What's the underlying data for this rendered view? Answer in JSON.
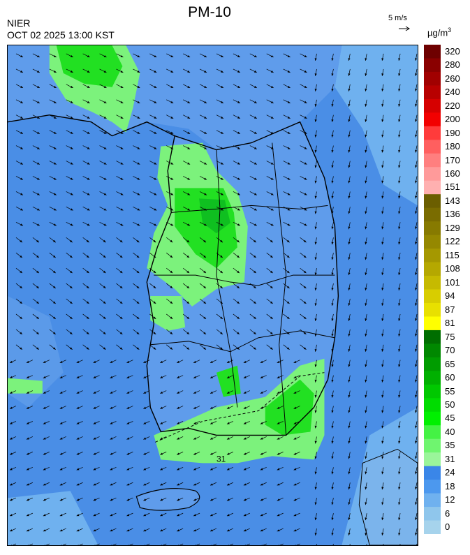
{
  "header": {
    "title": "PM-10",
    "agency": "NIER",
    "datetime": "OCT 02 2025 13:00 KST",
    "wind_scale_label": "5 m/s",
    "unit_base": "µg/m",
    "unit_sup": "3"
  },
  "legend": {
    "levels": [
      {
        "label": "320",
        "color": "#6e0000"
      },
      {
        "label": "280",
        "color": "#8a0000"
      },
      {
        "label": "260",
        "color": "#a10000"
      },
      {
        "label": "240",
        "color": "#b80000"
      },
      {
        "label": "220",
        "color": "#d60000"
      },
      {
        "label": "200",
        "color": "#f20000"
      },
      {
        "label": "190",
        "color": "#ff3b3b"
      },
      {
        "label": "180",
        "color": "#ff5f5f"
      },
      {
        "label": "170",
        "color": "#ff7f7f"
      },
      {
        "label": "160",
        "color": "#ff9a9a"
      },
      {
        "label": "151",
        "color": "#ffb0b0"
      },
      {
        "label": "143",
        "color": "#6b5e00"
      },
      {
        "label": "136",
        "color": "#7a6c00"
      },
      {
        "label": "129",
        "color": "#877a00"
      },
      {
        "label": "122",
        "color": "#958800"
      },
      {
        "label": "115",
        "color": "#a59800"
      },
      {
        "label": "108",
        "color": "#b5a800"
      },
      {
        "label": "101",
        "color": "#c6ba00"
      },
      {
        "label": "94",
        "color": "#d8cd00"
      },
      {
        "label": "87",
        "color": "#e8e000"
      },
      {
        "label": "81",
        "color": "#ffff00"
      },
      {
        "label": "75",
        "color": "#006e00"
      },
      {
        "label": "70",
        "color": "#008800"
      },
      {
        "label": "65",
        "color": "#009c00"
      },
      {
        "label": "60",
        "color": "#00b000"
      },
      {
        "label": "55",
        "color": "#00c800"
      },
      {
        "label": "50",
        "color": "#00dc00"
      },
      {
        "label": "45",
        "color": "#00f000"
      },
      {
        "label": "40",
        "color": "#44f244"
      },
      {
        "label": "35",
        "color": "#6ff56f"
      },
      {
        "label": "31",
        "color": "#9af59a"
      },
      {
        "label": "24",
        "color": "#3a86e8"
      },
      {
        "label": "18",
        "color": "#4c98ee"
      },
      {
        "label": "12",
        "color": "#6fb1ef"
      },
      {
        "label": "6",
        "color": "#8fc6ec"
      },
      {
        "label": "0",
        "color": "#a6d3ec"
      }
    ]
  },
  "map": {
    "contour_label": "31",
    "colors": {
      "ocean": "#4a8ee6",
      "ocean_light": "#6fb1ef",
      "land_blue": "#5f9ceb",
      "green_light": "#7cf27c",
      "green": "#22e022",
      "green_dark": "#0fbf20"
    }
  }
}
